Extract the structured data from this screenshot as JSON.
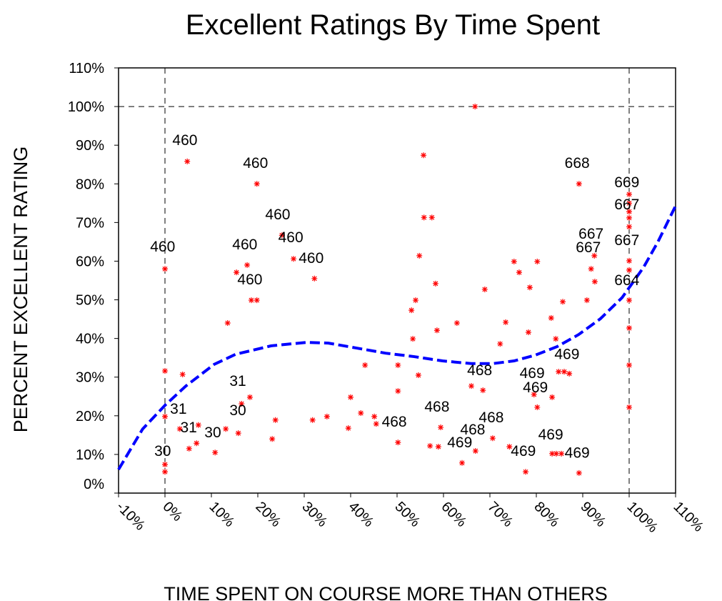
{
  "chart_data": {
    "type": "scatter",
    "title": "Excellent Ratings By Time Spent",
    "x_label": "TIME SPENT ON COURSE MORE THAN OTHERS",
    "y_label": "PERCENT EXCELLENT RATING",
    "xlim": [
      -10,
      110
    ],
    "ylim": [
      0,
      110
    ],
    "xticks": [
      {
        "value": -10,
        "label": "-10%"
      },
      {
        "value": 0,
        "label": "0%"
      },
      {
        "value": 10,
        "label": "10%"
      },
      {
        "value": 20,
        "label": "20%"
      },
      {
        "value": 30,
        "label": "30%"
      },
      {
        "value": 40,
        "label": "40%"
      },
      {
        "value": 50,
        "label": "50%"
      },
      {
        "value": 60,
        "label": "60%"
      },
      {
        "value": 70,
        "label": "70%"
      },
      {
        "value": 80,
        "label": "80%"
      },
      {
        "value": 90,
        "label": "90%"
      },
      {
        "value": 100,
        "label": "100%"
      },
      {
        "value": 110,
        "label": "110%"
      }
    ],
    "yticks": [
      {
        "value": 0,
        "label": "0%"
      },
      {
        "value": 10,
        "label": "10%"
      },
      {
        "value": 20,
        "label": "20%"
      },
      {
        "value": 30,
        "label": "30%"
      },
      {
        "value": 40,
        "label": "40%"
      },
      {
        "value": 50,
        "label": "50%"
      },
      {
        "value": 60,
        "label": "60%"
      },
      {
        "value": 70,
        "label": "70%"
      },
      {
        "value": 80,
        "label": "80%"
      },
      {
        "value": 90,
        "label": "90%"
      },
      {
        "value": 100,
        "label": "100%"
      },
      {
        "value": 110,
        "label": "110%"
      }
    ],
    "reference_lines": {
      "x": [
        0,
        100
      ],
      "y": [
        100
      ]
    },
    "color": "#ff0000",
    "x": [
      0,
      0,
      0,
      0,
      0,
      4.8,
      3.8,
      3.2,
      5.2,
      6.8,
      7.2,
      10.8,
      13.1,
      13.5,
      15.4,
      15.8,
      16.5,
      17.7,
      18.3,
      18.6,
      19.8,
      19.8,
      23.1,
      23.8,
      25.2,
      27.7,
      31.8,
      32.2,
      34.9,
      39.5,
      40,
      42.2,
      43.1,
      45.1,
      45.5,
      50.2,
      50.2,
      50.2,
      53.1,
      53.4,
      54,
      54.6,
      54.8,
      55.7,
      55.8,
      57.5,
      57.1,
      58.3,
      58.6,
      58.9,
      59.4,
      62.9,
      64,
      66,
      66.8,
      66.9,
      68.5,
      68.9,
      70.6,
      72.2,
      73.4,
      74.2,
      75.2,
      76.3,
      77.7,
      78.3,
      78.6,
      79.5,
      80.2,
      80.2,
      83.2,
      83.4,
      83.4,
      84.3,
      84.2,
      84.8,
      85.4,
      85.7,
      86,
      87.1,
      89.2,
      89.2,
      90.9,
      91.8,
      92.5,
      92.6,
      100,
      100,
      100,
      100,
      100,
      100,
      100,
      100,
      100,
      100,
      100
    ],
    "y": [
      58,
      31.6,
      19.8,
      7.4,
      5.5,
      85.8,
      30.7,
      16.6,
      11.5,
      12.9,
      17.6,
      10.5,
      16.6,
      44,
      57.1,
      15.5,
      23.1,
      59,
      24.8,
      49.9,
      49.9,
      80,
      14,
      18.9,
      66.7,
      60.6,
      18.9,
      55.5,
      19.8,
      16.8,
      24.8,
      20.7,
      33.1,
      19.8,
      17.9,
      26.4,
      33.1,
      13.1,
      47.3,
      39.9,
      49.9,
      30.5,
      61.4,
      87.4,
      71.3,
      71.3,
      12.2,
      54.2,
      42.1,
      12,
      17,
      44,
      7.8,
      27.7,
      100,
      10.9,
      26.6,
      52.7,
      14.2,
      38.6,
      44.2,
      12,
      59.9,
      57.1,
      5.5,
      41.6,
      53.2,
      25.5,
      59.9,
      22.2,
      45.3,
      24.8,
      10.2,
      10.2,
      39.9,
      31.4,
      10.2,
      49.5,
      31.4,
      30.9,
      80,
      5.2,
      49.9,
      58,
      61.4,
      54.7,
      77.3,
      75,
      72.8,
      71.2,
      68.9,
      60.1,
      57.7,
      49.9,
      42.7,
      33.1,
      22.2
    ],
    "fit": {
      "color": "#0000ff",
      "x": [
        -10,
        -4.8,
        0,
        4.5,
        10.6,
        15.2,
        22.9,
        30.6,
        35.2,
        41.4,
        47.5,
        53.7,
        59.8,
        66,
        70.6,
        75.2,
        79.8,
        84.5,
        89.1,
        93.8,
        98.5,
        103.1,
        106.2,
        110
      ],
      "y": [
        6.1,
        16.6,
        22.7,
        27.7,
        33.3,
        35.9,
        38.1,
        39.0,
        38.8,
        37.5,
        36.2,
        35.3,
        34.2,
        33.5,
        33.5,
        34.2,
        35.7,
        37.9,
        41,
        45.1,
        50.6,
        58.4,
        65,
        74.3
      ]
    },
    "annotations": [
      {
        "text": "460",
        "x": 4.3,
        "y": 91.3
      },
      {
        "text": "460",
        "x": 19.5,
        "y": 85.4
      },
      {
        "text": "460",
        "x": 24.3,
        "y": 72.1
      },
      {
        "text": "460",
        "x": 27.1,
        "y": 66.2
      },
      {
        "text": "460",
        "x": -0.5,
        "y": 63.8
      },
      {
        "text": "460",
        "x": 17.2,
        "y": 64.3
      },
      {
        "text": "460",
        "x": 31.5,
        "y": 60.8
      },
      {
        "text": "460",
        "x": 18.3,
        "y": 55.3
      },
      {
        "text": "31",
        "x": 15.7,
        "y": 29
      },
      {
        "text": "31",
        "x": 2.9,
        "y": 21.8
      },
      {
        "text": "30",
        "x": 15.7,
        "y": 21.4
      },
      {
        "text": "31",
        "x": 5.1,
        "y": 17
      },
      {
        "text": "30",
        "x": 10.3,
        "y": 15.7
      },
      {
        "text": "30",
        "x": -0.5,
        "y": 10.9
      },
      {
        "text": "468",
        "x": 49.4,
        "y": 18.5
      },
      {
        "text": "468",
        "x": 58.6,
        "y": 22.4
      },
      {
        "text": "468",
        "x": 67.8,
        "y": 31.8
      },
      {
        "text": "468",
        "x": 70.3,
        "y": 19.6
      },
      {
        "text": "468",
        "x": 66.3,
        "y": 16.5
      },
      {
        "text": "469",
        "x": 63.5,
        "y": 13.1
      },
      {
        "text": "469",
        "x": 77.2,
        "y": 10.9
      },
      {
        "text": "469",
        "x": 79.1,
        "y": 31.1
      },
      {
        "text": "469",
        "x": 79.8,
        "y": 27.4
      },
      {
        "text": "469",
        "x": 86.6,
        "y": 36
      },
      {
        "text": "469",
        "x": 83.1,
        "y": 15.2
      },
      {
        "text": "469",
        "x": 88.8,
        "y": 10.4
      },
      {
        "text": "668",
        "x": 88.8,
        "y": 85.4
      },
      {
        "text": "669",
        "x": 99.5,
        "y": 80.4
      },
      {
        "text": "667",
        "x": 99.5,
        "y": 74.7
      },
      {
        "text": "667",
        "x": 91.8,
        "y": 67.1
      },
      {
        "text": "667",
        "x": 91.2,
        "y": 63.6
      },
      {
        "text": "667",
        "x": 99.5,
        "y": 65.4
      },
      {
        "text": "664",
        "x": 99.5,
        "y": 55.1
      }
    ]
  }
}
